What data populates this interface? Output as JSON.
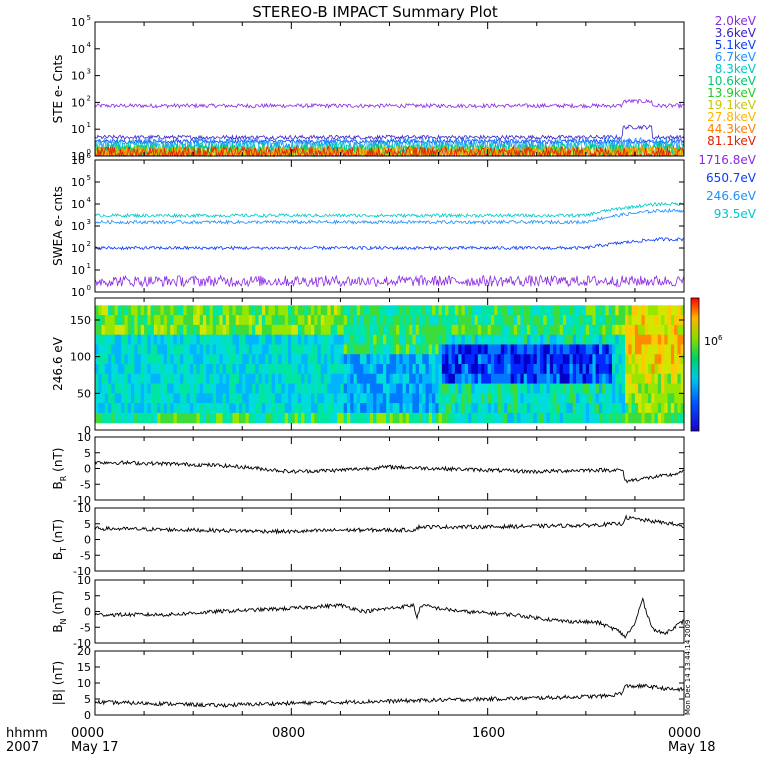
{
  "title": "STEREO-B IMPACT Summary Plot",
  "time_footer": {
    "left_line1": "hhmm",
    "left_line2": "2007",
    "ticks": [
      "0000",
      "0800",
      "1600",
      "0000"
    ],
    "dates": [
      "May 17",
      "May 18"
    ]
  },
  "side_stamp": "Mon Dec 14 13:44:14 2009",
  "chart_data": [
    {
      "type": "line",
      "panel": "ste",
      "ylabel": "STE e- Cnts",
      "yscale": "log",
      "ylim": [
        1,
        100000
      ],
      "yticks": [
        "10",
        "10",
        "10",
        "10",
        "10",
        "10"
      ],
      "ytick_exponents": [
        "0",
        "1",
        "2",
        "3",
        "4",
        "5"
      ],
      "x_hours": [
        0,
        24
      ],
      "series": [
        {
          "name": "2.0keV",
          "color": "#8a2be2",
          "level": 75,
          "spike_at_hour": 21.5,
          "spike_level": 110
        },
        {
          "name": "3.6keV",
          "color": "#3a20c8",
          "level": 5,
          "spike_at_hour": 21.5,
          "spike_level": 12
        },
        {
          "name": "5.1keV",
          "color": "#0a3cff",
          "level": 3.5
        },
        {
          "name": "6.7keV",
          "color": "#1e90ff",
          "level": 2.2
        },
        {
          "name": "8.3keV",
          "color": "#00c8c8",
          "level": 1.6
        },
        {
          "name": "10.6keV",
          "color": "#00c878",
          "level": 1.3
        },
        {
          "name": "13.9keV",
          "color": "#22cc22",
          "level": 1.1
        },
        {
          "name": "19.1keV",
          "color": "#c8c800",
          "level": 1.05
        },
        {
          "name": "27.8keV",
          "color": "#ffb400",
          "level": 1.0
        },
        {
          "name": "44.3keV",
          "color": "#ff8000",
          "level": 1.0
        },
        {
          "name": "81.1keV",
          "color": "#e02000",
          "level": 1.0
        }
      ]
    },
    {
      "type": "line",
      "panel": "swea",
      "ylabel": "SWEA e- cnts",
      "yscale": "log",
      "ylim": [
        1,
        1000000
      ],
      "yticks": [
        "10",
        "10",
        "10",
        "10",
        "10",
        "10",
        "10"
      ],
      "ytick_exponents": [
        "0",
        "1",
        "2",
        "3",
        "4",
        "5",
        "6"
      ],
      "x_hours": [
        0,
        24
      ],
      "series": [
        {
          "name": "1716.8eV",
          "color": "#8a2be2",
          "level": 2.5
        },
        {
          "name": "650.7eV",
          "color": "#0a3cff",
          "level": 100,
          "end_level": 250
        },
        {
          "name": "246.6eV",
          "color": "#1e90ff",
          "level": 1500,
          "end_level": 5000
        },
        {
          "name": "93.5eV",
          "color": "#00c8c8",
          "level": 3000,
          "end_level": 10000
        }
      ]
    },
    {
      "type": "heatmap",
      "panel": "pad",
      "ylabel": "246.6 eV",
      "ylim": [
        0,
        180
      ],
      "yticks": [
        "0",
        "50",
        "100",
        "150"
      ],
      "colorbar_label": "10",
      "colorbar_exponent": "6",
      "x_hours": [
        0,
        24
      ]
    },
    {
      "type": "line",
      "panel": "br",
      "ylabel": "B",
      "ylabel_sub": "R",
      "ylabel_unit": " (nT)",
      "ylim": [
        -10,
        10
      ],
      "yticks": [
        "-10",
        "-5",
        "0",
        "5",
        "10"
      ],
      "x_hours": [
        0,
        24
      ],
      "series": [
        {
          "name": "",
          "color": "#000000",
          "anchors": [
            [
              0,
              2
            ],
            [
              3,
              1.5
            ],
            [
              5,
              1
            ],
            [
              6,
              0.5
            ],
            [
              8,
              -1
            ],
            [
              10,
              -0.5
            ],
            [
              12,
              0.5
            ],
            [
              14,
              0
            ],
            [
              16,
              -0.5
            ],
            [
              18,
              -1
            ],
            [
              20,
              -0.5
            ],
            [
              21.5,
              -0.5
            ],
            [
              21.6,
              -4
            ],
            [
              22.5,
              -3
            ],
            [
              23.5,
              -2
            ],
            [
              24,
              -1
            ]
          ]
        }
      ]
    },
    {
      "type": "line",
      "panel": "bt",
      "ylabel": "B",
      "ylabel_sub": "T",
      "ylabel_unit": " (nT)",
      "ylim": [
        -10,
        10
      ],
      "yticks": [
        "-10",
        "-5",
        "0",
        "5",
        "10"
      ],
      "x_hours": [
        0,
        24
      ],
      "series": [
        {
          "name": "",
          "color": "#000000",
          "anchors": [
            [
              0,
              3.5
            ],
            [
              4,
              3
            ],
            [
              8,
              2.5
            ],
            [
              10,
              3
            ],
            [
              13,
              3
            ],
            [
              13.2,
              4
            ],
            [
              16,
              4
            ],
            [
              20,
              4.5
            ],
            [
              21.5,
              5
            ],
            [
              21.6,
              7
            ],
            [
              22.5,
              6
            ],
            [
              23.5,
              5
            ],
            [
              24,
              4
            ]
          ]
        }
      ]
    },
    {
      "type": "line",
      "panel": "bn",
      "ylabel": "B",
      "ylabel_sub": "N",
      "ylabel_unit": " (nT)",
      "ylim": [
        -10,
        10
      ],
      "yticks": [
        "-10",
        "-5",
        "0",
        "5",
        "10"
      ],
      "x_hours": [
        0,
        24
      ],
      "series": [
        {
          "name": "",
          "color": "#000000",
          "anchors": [
            [
              0,
              -1
            ],
            [
              3,
              -1
            ],
            [
              5,
              0
            ],
            [
              8,
              1
            ],
            [
              10,
              2
            ],
            [
              11,
              0
            ],
            [
              12,
              1
            ],
            [
              13,
              2
            ],
            [
              13.1,
              -2
            ],
            [
              13.3,
              2
            ],
            [
              14,
              1
            ],
            [
              15,
              0
            ],
            [
              17,
              -1
            ],
            [
              19,
              -3
            ],
            [
              20.5,
              -3.5
            ],
            [
              21.3,
              -6
            ],
            [
              21.6,
              -8
            ],
            [
              22,
              -4
            ],
            [
              22.3,
              4
            ],
            [
              22.6,
              -3
            ],
            [
              22.8,
              -6
            ],
            [
              23.2,
              -7
            ],
            [
              23.6,
              -5
            ],
            [
              24,
              -3
            ]
          ]
        }
      ]
    },
    {
      "type": "line",
      "panel": "bmag",
      "ylabel": "|B| (nT)",
      "ylim": [
        0,
        20
      ],
      "yticks": [
        "0",
        "5",
        "10",
        "15",
        "20"
      ],
      "x_hours": [
        0,
        24
      ],
      "series": [
        {
          "name": "",
          "color": "#000000",
          "anchors": [
            [
              0,
              4
            ],
            [
              3,
              3.5
            ],
            [
              5,
              3
            ],
            [
              7,
              3.5
            ],
            [
              10,
              4
            ],
            [
              13,
              4.5
            ],
            [
              16,
              5
            ],
            [
              19,
              5.5
            ],
            [
              21,
              6
            ],
            [
              21.5,
              7
            ],
            [
              21.6,
              9
            ],
            [
              22.5,
              9
            ],
            [
              23.5,
              8
            ],
            [
              24,
              8
            ]
          ]
        }
      ]
    }
  ]
}
